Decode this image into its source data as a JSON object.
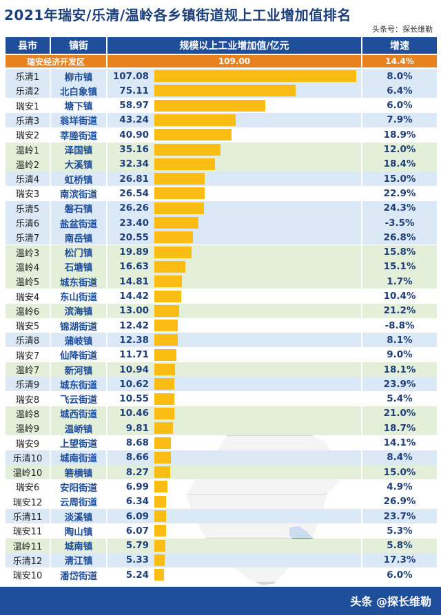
{
  "title": "2021年瑞安/乐清/温岭各乡镇街道规上工业增加值排名",
  "source": "头条号：探长维勒",
  "footer": "头条 @探长维勒",
  "headers": {
    "county": "县市",
    "town": "镇街",
    "value": "规模以上工业增加值/亿元",
    "growth": "增速"
  },
  "highlight": {
    "name": "瑞安经济开发区",
    "value": "109.00",
    "growth": "14.4%"
  },
  "colors": {
    "header": "#1f4e9a",
    "highlight": "#e8821f",
    "bar": "#fbbd13",
    "ruian_row": "#ffffff",
    "yueqing_row": "#dbe8f5",
    "wenling_row": "#e3efd9",
    "map_highlight": "#3a78c6"
  },
  "chart_data": {
    "type": "bar",
    "title": "2021年瑞安/乐清/温岭各乡镇街道规上工业增加值排名",
    "xlabel": "",
    "ylabel": "规模以上工业增加值/亿元",
    "xlim": [
      0,
      109
    ],
    "categories": [
      "柳市镇",
      "北白象镇",
      "塘下镇",
      "翁垟街道",
      "莘塍街道",
      "泽国镇",
      "大溪镇",
      "虹桥镇",
      "南滨街道",
      "磐石镇",
      "盐盆街道",
      "南岳镇",
      "松门镇",
      "石塘镇",
      "城东街道",
      "东山街道",
      "滨海镇",
      "锦湖街道",
      "蒲岐镇",
      "仙降街道",
      "新河镇",
      "城东街道",
      "飞云街道",
      "城西街道",
      "温峤镇",
      "上望街道",
      "城南街道",
      "箬横镇",
      "安阳街道",
      "云周街道",
      "淡溪镇",
      "陶山镇",
      "城南镇",
      "清江镇",
      "潘岱街道"
    ],
    "rank_labels": [
      "乐清1",
      "乐清2",
      "瑞安1",
      "乐清3",
      "瑞安2",
      "温岭1",
      "温岭2",
      "乐清4",
      "瑞安3",
      "乐清5",
      "乐清6",
      "乐清7",
      "温岭3",
      "温岭4",
      "温岭5",
      "瑞安4",
      "温岭6",
      "瑞安5",
      "乐清8",
      "瑞安7",
      "温岭7",
      "乐清9",
      "瑞安8",
      "温岭8",
      "温岭9",
      "瑞安9",
      "乐清10",
      "温岭10",
      "瑞安6",
      "瑞安12",
      "乐清11",
      "瑞安11",
      "温岭11",
      "乐清12",
      "瑞安10"
    ],
    "values": [
      107.08,
      75.11,
      58.97,
      43.24,
      40.9,
      35.16,
      32.34,
      26.81,
      26.54,
      26.26,
      23.4,
      20.55,
      19.89,
      16.63,
      14.81,
      14.42,
      13.0,
      12.42,
      12.38,
      11.71,
      10.94,
      10.62,
      10.55,
      10.46,
      9.81,
      8.68,
      8.66,
      8.27,
      6.99,
      6.34,
      6.09,
      6.07,
      5.79,
      5.33,
      5.24
    ],
    "value_labels": [
      "107.08",
      "75.11",
      "58.97",
      "43.24",
      "40.90",
      "35.16",
      "32.34",
      "26.81",
      "26.54",
      "26.26",
      "23.40",
      "20.55",
      "19.89",
      "16.63",
      "14.81",
      "14.42",
      "13.00",
      "12.42",
      "12.38",
      "11.71",
      "10.94",
      "10.62",
      "10.55",
      "10.46",
      "9.81",
      "8.68",
      "8.66",
      "8.27",
      "6.99",
      "6.34",
      "6.09",
      "6.07",
      "5.79",
      "5.33",
      "5.24"
    ],
    "growth": [
      "8.0%",
      "6.4%",
      "6.0%",
      "7.9%",
      "18.9%",
      "12.0%",
      "18.4%",
      "15.0%",
      "22.9%",
      "24.3%",
      "-3.5%",
      "26.8%",
      "15.8%",
      "15.1%",
      "1.7%",
      "10.4%",
      "21.2%",
      "-8.8%",
      "8.1%",
      "9.0%",
      "18.1%",
      "23.9%",
      "5.4%",
      "21.0%",
      "18.7%",
      "14.1%",
      "8.4%",
      "15.0%",
      "4.9%",
      "26.9%",
      "23.7%",
      "5.3%",
      "5.8%",
      "17.3%",
      "6.0%"
    ]
  }
}
